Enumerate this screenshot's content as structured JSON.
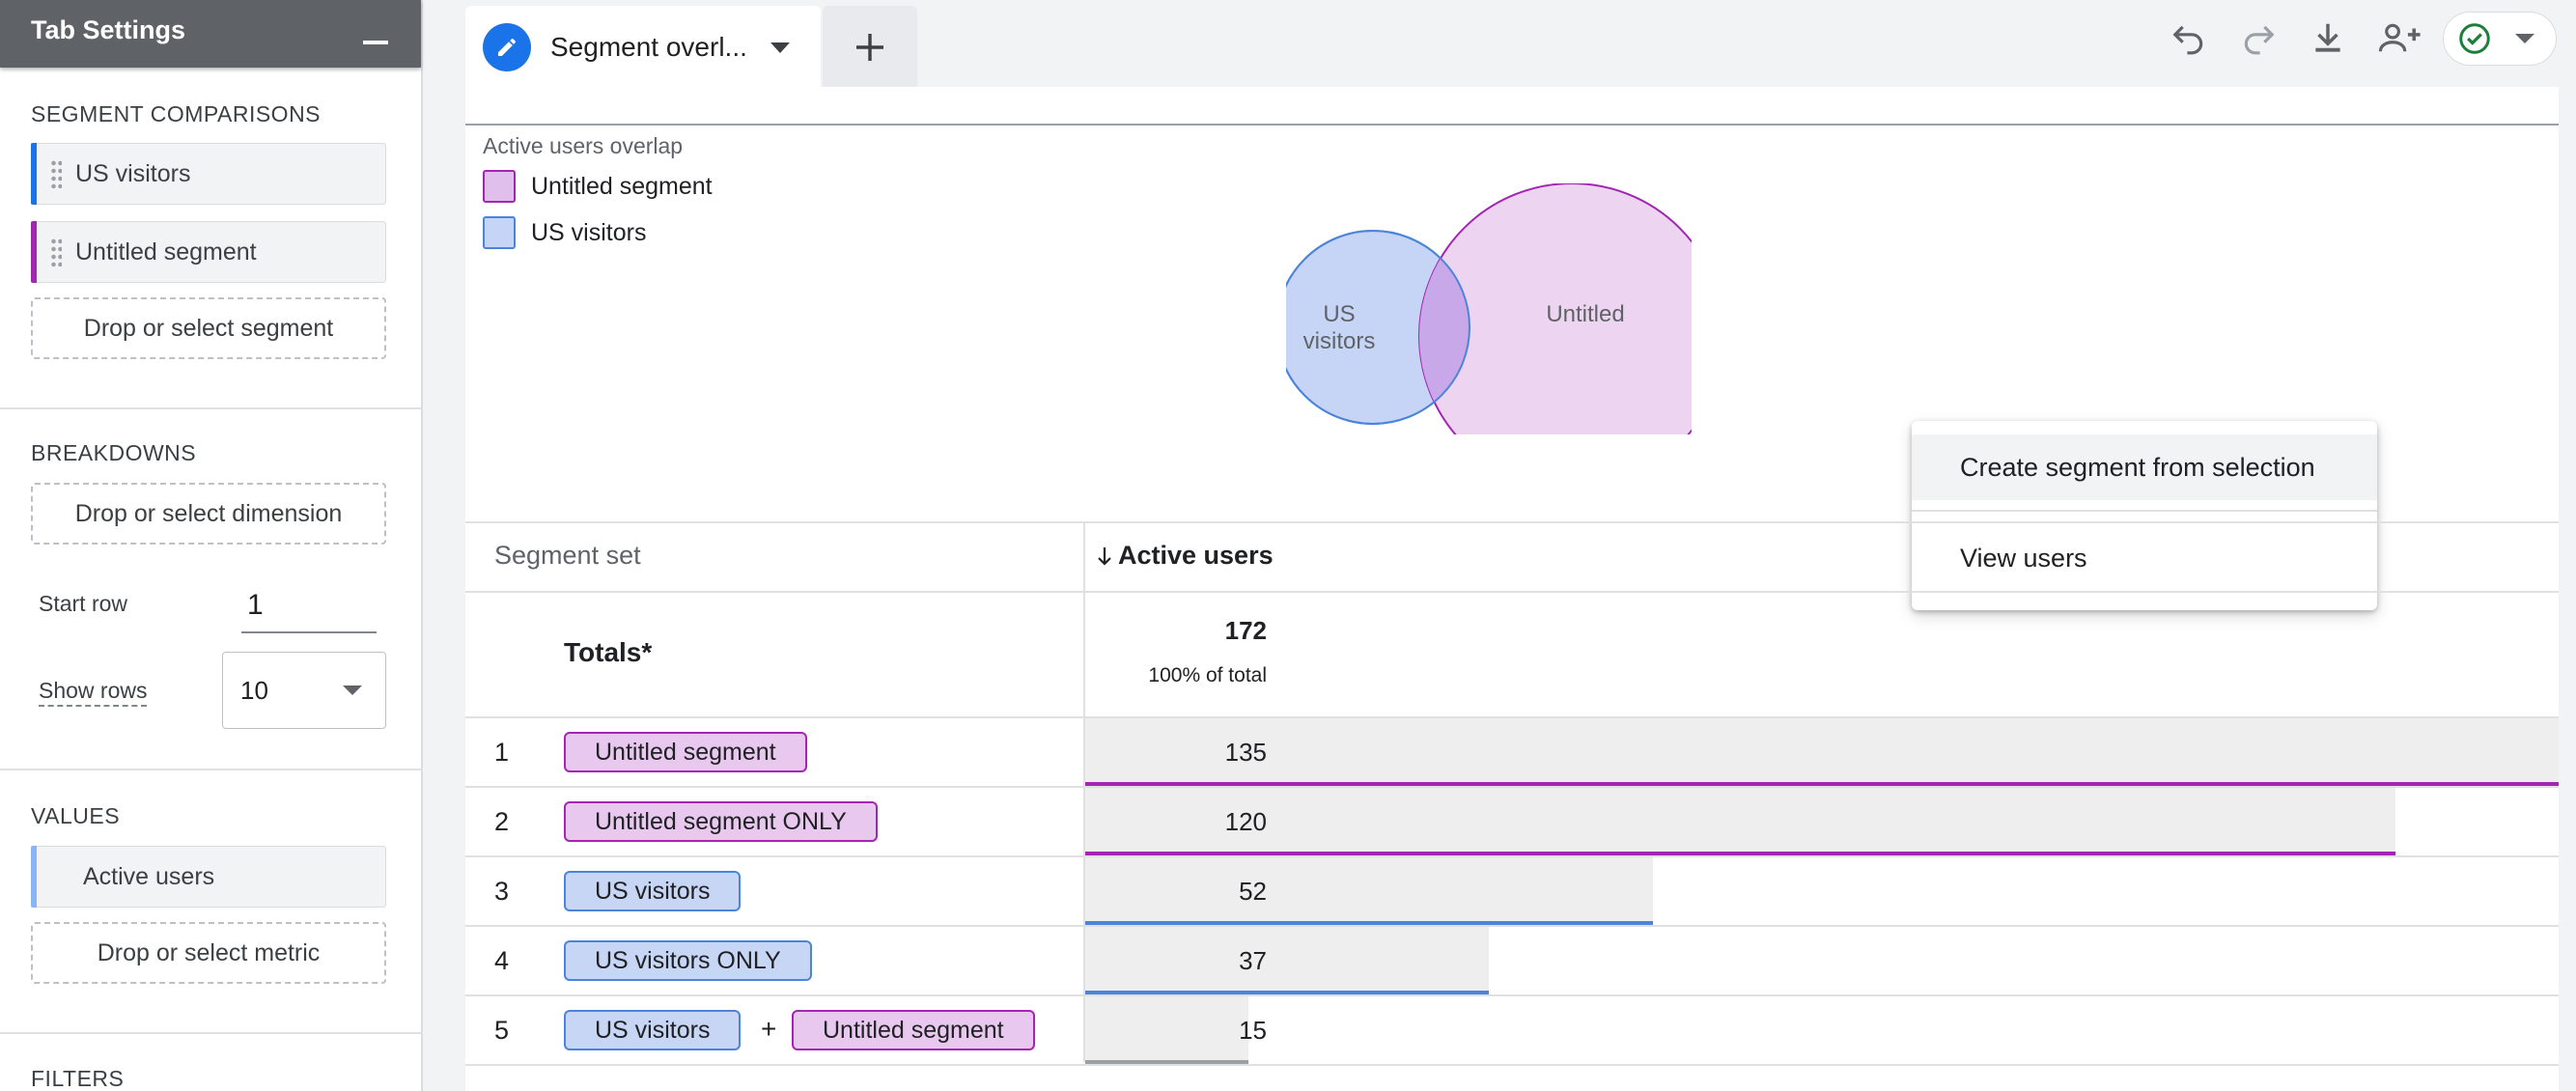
{
  "sidebar": {
    "title": "Tab Settings",
    "segment_comparisons": {
      "title": "SEGMENT COMPARISONS",
      "items": [
        {
          "label": "US visitors",
          "color": "#1a73e8"
        },
        {
          "label": "Untitled segment",
          "color": "#a326b3"
        }
      ],
      "drop_label": "Drop or select segment"
    },
    "breakdowns": {
      "title": "BREAKDOWNS",
      "drop_label": "Drop or select dimension",
      "start_row_label": "Start row",
      "start_row_value": "1",
      "show_rows_label": "Show rows",
      "show_rows_value": "10"
    },
    "values": {
      "title": "VALUES",
      "items": [
        {
          "label": "Active users",
          "color": "#8ab4f8"
        }
      ],
      "drop_label": "Drop or select metric"
    },
    "filters": {
      "title": "FILTERS"
    }
  },
  "tab": {
    "name": "Segment overl...",
    "icon": "pencil-icon"
  },
  "toolbar": {
    "icons": [
      "undo-icon",
      "redo-icon",
      "download-icon",
      "share-users-icon",
      "check-circle-icon"
    ],
    "colors": {
      "check": "#188038",
      "active_icon": "#5f6368",
      "disabled_icon": "#9aa0a6"
    }
  },
  "viz": {
    "title": "Active users overlap",
    "legend": [
      {
        "label": "Untitled segment",
        "fill": "#e1bfec",
        "stroke": "#a326b3"
      },
      {
        "label": "US visitors",
        "fill": "#c6d4f5",
        "stroke": "#4c84d9"
      }
    ],
    "venn": {
      "labels": {
        "us_line1": "US",
        "us_line2": "visitors",
        "untitled": "Untitled"
      }
    }
  },
  "context_menu": {
    "items": [
      "Create segment from selection",
      "View users"
    ]
  },
  "table": {
    "col_segment": "Segment set",
    "col_metric": "Active users",
    "sort_icon": "arrow-down-icon",
    "totals": {
      "label": "Totals*",
      "value": "172",
      "pct": "100% of total"
    },
    "rows": [
      {
        "num": "1",
        "pills": [
          {
            "label": "Untitled segment",
            "color": "pink"
          }
        ],
        "value": "135",
        "fraction": 1.0,
        "line_color": "#a326b3"
      },
      {
        "num": "2",
        "pills": [
          {
            "label": "Untitled segment ONLY",
            "color": "pink"
          }
        ],
        "value": "120",
        "fraction": 0.889,
        "line_color": "#a326b3"
      },
      {
        "num": "3",
        "pills": [
          {
            "label": "US visitors",
            "color": "blue"
          }
        ],
        "value": "52",
        "fraction": 0.385,
        "line_color": "#4c84d9"
      },
      {
        "num": "4",
        "pills": [
          {
            "label": "US visitors ONLY",
            "color": "blue"
          }
        ],
        "value": "37",
        "fraction": 0.274,
        "line_color": "#4c84d9"
      },
      {
        "num": "5",
        "pills": [
          {
            "label": "US visitors",
            "color": "blue"
          },
          {
            "label": "Untitled segment",
            "color": "pink"
          }
        ],
        "joiner": "+",
        "value": "15",
        "fraction": 0.111,
        "line_color": "#9aa0a6"
      }
    ]
  }
}
